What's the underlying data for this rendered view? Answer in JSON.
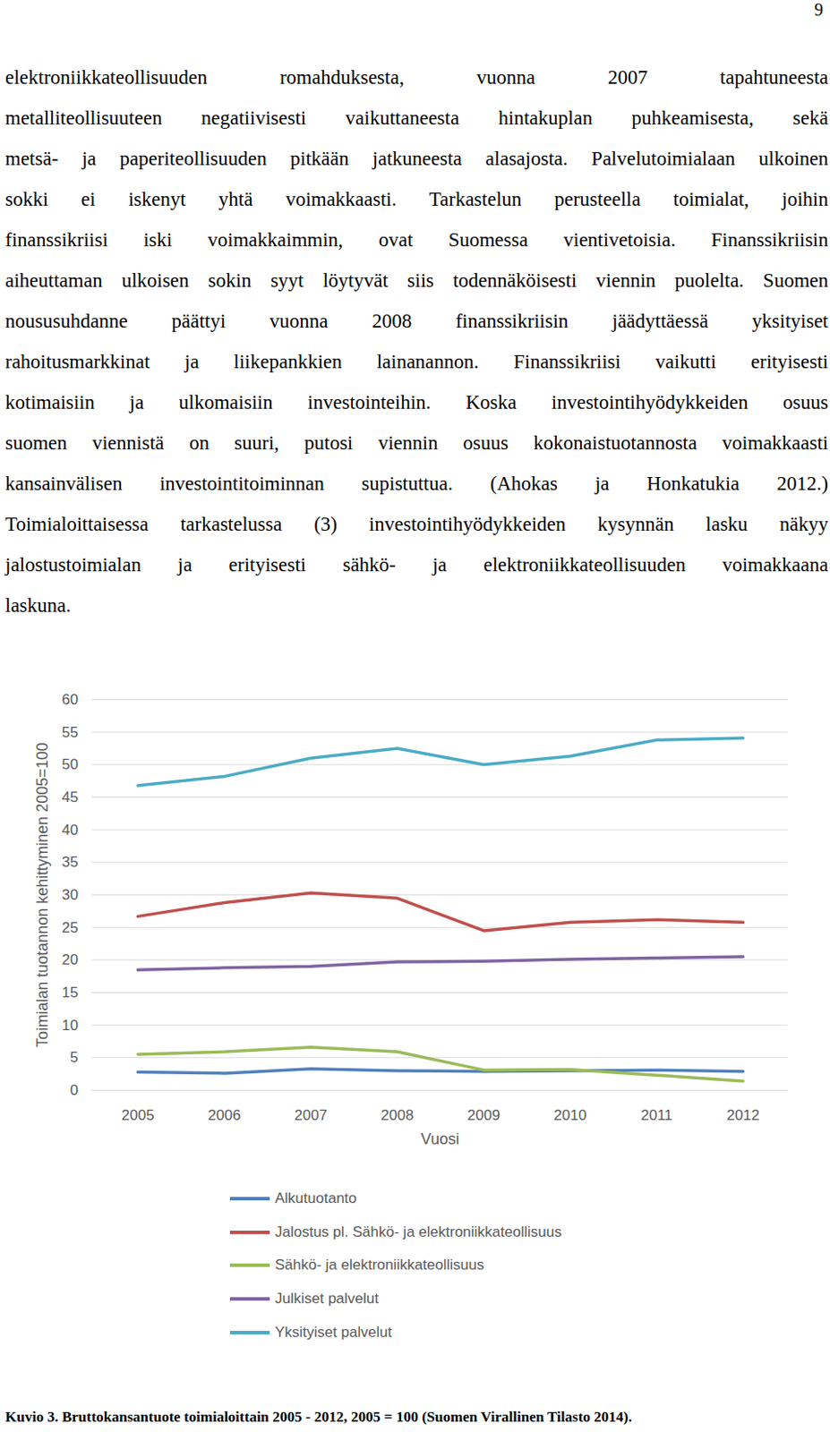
{
  "page_number": "9",
  "body_lines": [
    "elektroniikkateollisuuden romahduksesta, vuonna 2007 tapahtuneesta",
    "metalliteollisuuteen negatiivisesti vaikuttaneesta hintakuplan puhkeamisesta, sekä",
    "metsä- ja paperiteollisuuden pitkään jatkuneesta alasajosta. Palvelutoimialaan ulkoinen",
    "sokki ei iskenyt yhtä voimakkaasti. Tarkastelun perusteella toimialat, joihin",
    "finanssikriisi iski voimakkaimmin, ovat Suomessa vientivetoisia. Finanssikriisin",
    "aiheuttaman ulkoisen sokin syyt löytyvät siis todennäköisesti viennin puolelta. Suomen",
    "noususuhdanne päättyi vuonna 2008 finanssikriisin jäädyttäessä yksityiset",
    "rahoitusmarkkinat ja liikepankkien lainanannon. Finanssikriisi vaikutti erityisesti",
    "kotimaisiin ja ulkomaisiin investointeihin. Koska investointihyödykkeiden osuus",
    "suomen viennistä on suuri, putosi viennin osuus kokonaistuotannosta voimakkaasti",
    "kansainvälisen investointitoiminnan supistuttua. (Ahokas ja Honkatukia 2012.)",
    "Toimialoittaisessa tarkastelussa (3) investointihyödykkeiden kysynnän lasku näkyy",
    "jalostustoimialan ja erityisesti sähkö- ja elektroniikkateollisuuden voimakkaana",
    "laskuna."
  ],
  "chart_data": {
    "type": "line",
    "categories": [
      "2005",
      "2006",
      "2007",
      "2008",
      "2009",
      "2010",
      "2011",
      "2012"
    ],
    "xlabel": "Vuosi",
    "ylabel": "Toimialan tuotannon kehittyminen 2005=100",
    "ylim": [
      0,
      60
    ],
    "yticks": [
      0,
      5,
      10,
      15,
      20,
      25,
      30,
      35,
      40,
      45,
      50,
      55,
      60
    ],
    "grid": true,
    "legend": "bottom",
    "series": [
      {
        "name": "Alkutuotanto",
        "color": "#4f81bd",
        "values": [
          2.8,
          2.6,
          3.3,
          3.0,
          2.9,
          3.0,
          3.1,
          2.9
        ]
      },
      {
        "name": "Jalostus pl. Sähkö- ja elektroniikkateollisuus",
        "color": "#c0504d",
        "values": [
          26.7,
          28.8,
          30.3,
          29.5,
          24.5,
          25.8,
          26.2,
          25.8
        ]
      },
      {
        "name": "Sähkö- ja elektroniikkateollisuus",
        "color": "#9bbb59",
        "values": [
          5.5,
          5.9,
          6.6,
          5.9,
          3.1,
          3.2,
          2.3,
          1.4
        ]
      },
      {
        "name": "Julkiset palvelut",
        "color": "#8064a2",
        "values": [
          18.5,
          18.8,
          19.0,
          19.7,
          19.8,
          20.1,
          20.3,
          20.5
        ]
      },
      {
        "name": "Yksityiset palvelut",
        "color": "#4bacc6",
        "values": [
          46.8,
          48.2,
          51.0,
          52.5,
          50.0,
          51.3,
          53.8,
          54.1
        ]
      }
    ]
  },
  "caption": "Kuvio 3. Bruttokansantuote toimialoittain 2005 - 2012, 2005 = 100 (Suomen Virallinen Tilasto 2014)."
}
